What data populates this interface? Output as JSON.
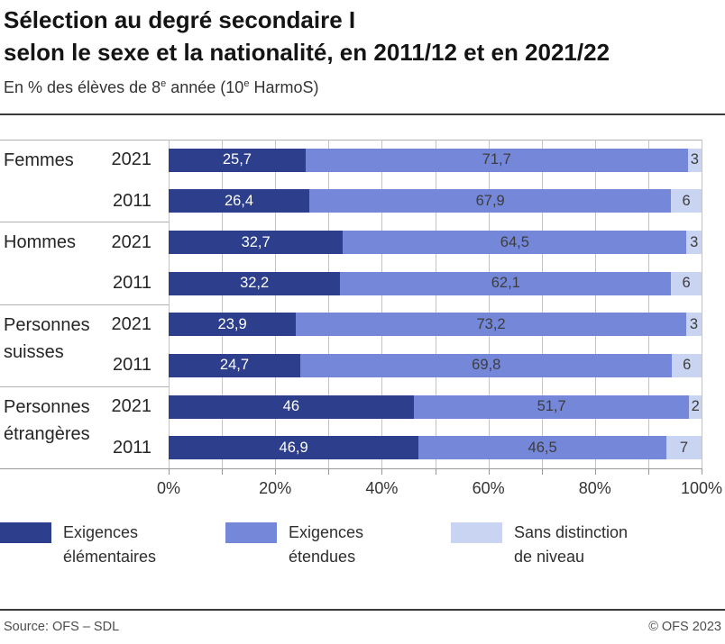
{
  "title": {
    "line1": "Sélection au degré secondaire I",
    "line2": "selon le sexe et la nationalité, en 2011/12 et en 2021/22"
  },
  "subtitle": {
    "part1": "En % des élèves de 8",
    "sup1": "e",
    "part2": " année (10",
    "sup2": "e",
    "part3": " HarmoS)"
  },
  "chart_data": {
    "type": "bar",
    "stacked": true,
    "orientation": "horizontal",
    "unit": "%",
    "xlim": [
      0,
      100
    ],
    "grid_step_pct": 10,
    "x_ticks": [
      {
        "value": 0,
        "label": "0%"
      },
      {
        "value": 20,
        "label": "20%"
      },
      {
        "value": 40,
        "label": "40%"
      },
      {
        "value": 60,
        "label": "60%"
      },
      {
        "value": 80,
        "label": "80%"
      },
      {
        "value": 100,
        "label": "100%"
      }
    ],
    "series": [
      {
        "name": "Exigences élémentaires",
        "color": "#2c3e8c",
        "text_color": "#ffffff"
      },
      {
        "name": "Exigences étendues",
        "color": "#7487d9",
        "text_color": "#3d3d3d"
      },
      {
        "name": "Sans distinction de niveau",
        "color": "#c9d3f2",
        "text_color": "#3d3d3d"
      }
    ],
    "groups": [
      {
        "label_lines": [
          "Femmes"
        ],
        "rows": [
          {
            "year": "2021",
            "values": [
              25.7,
              71.7,
              2.6
            ],
            "labels": [
              "25,7",
              "71,7",
              "3"
            ]
          },
          {
            "year": "2011",
            "values": [
              26.4,
              67.9,
              5.7
            ],
            "labels": [
              "26,4",
              "67,9",
              "6"
            ]
          }
        ]
      },
      {
        "label_lines": [
          "Hommes"
        ],
        "rows": [
          {
            "year": "2021",
            "values": [
              32.7,
              64.5,
              2.8
            ],
            "labels": [
              "32,7",
              "64,5",
              "3"
            ]
          },
          {
            "year": "2011",
            "values": [
              32.2,
              62.1,
              5.7
            ],
            "labels": [
              "32,2",
              "62,1",
              "6"
            ]
          }
        ]
      },
      {
        "label_lines": [
          "Personnes",
          "suisses"
        ],
        "rows": [
          {
            "year": "2021",
            "values": [
              23.9,
              73.2,
              2.9
            ],
            "labels": [
              "23,9",
              "73,2",
              "3"
            ]
          },
          {
            "year": "2011",
            "values": [
              24.7,
              69.8,
              5.5
            ],
            "labels": [
              "24,7",
              "69,8",
              "6"
            ]
          }
        ]
      },
      {
        "label_lines": [
          "Personnes",
          "étrangères"
        ],
        "rows": [
          {
            "year": "2021",
            "values": [
              46.0,
              51.7,
              2.3
            ],
            "labels": [
              "46",
              "51,7",
              "2"
            ]
          },
          {
            "year": "2011",
            "values": [
              46.9,
              46.5,
              6.6
            ],
            "labels": [
              "46,9",
              "46,5",
              "7"
            ]
          }
        ]
      }
    ]
  },
  "legend": {
    "items": [
      {
        "line1": "Exigences",
        "line2": "élémentaires",
        "color": "#2c3e8c"
      },
      {
        "line1": "Exigences",
        "line2": "étendues",
        "color": "#7487d9"
      },
      {
        "line1": "Sans distinction",
        "line2": "de niveau",
        "color": "#c9d3f2"
      }
    ]
  },
  "footer": {
    "source": "Source: OFS – SDL",
    "copyright": "© OFS 2023"
  }
}
